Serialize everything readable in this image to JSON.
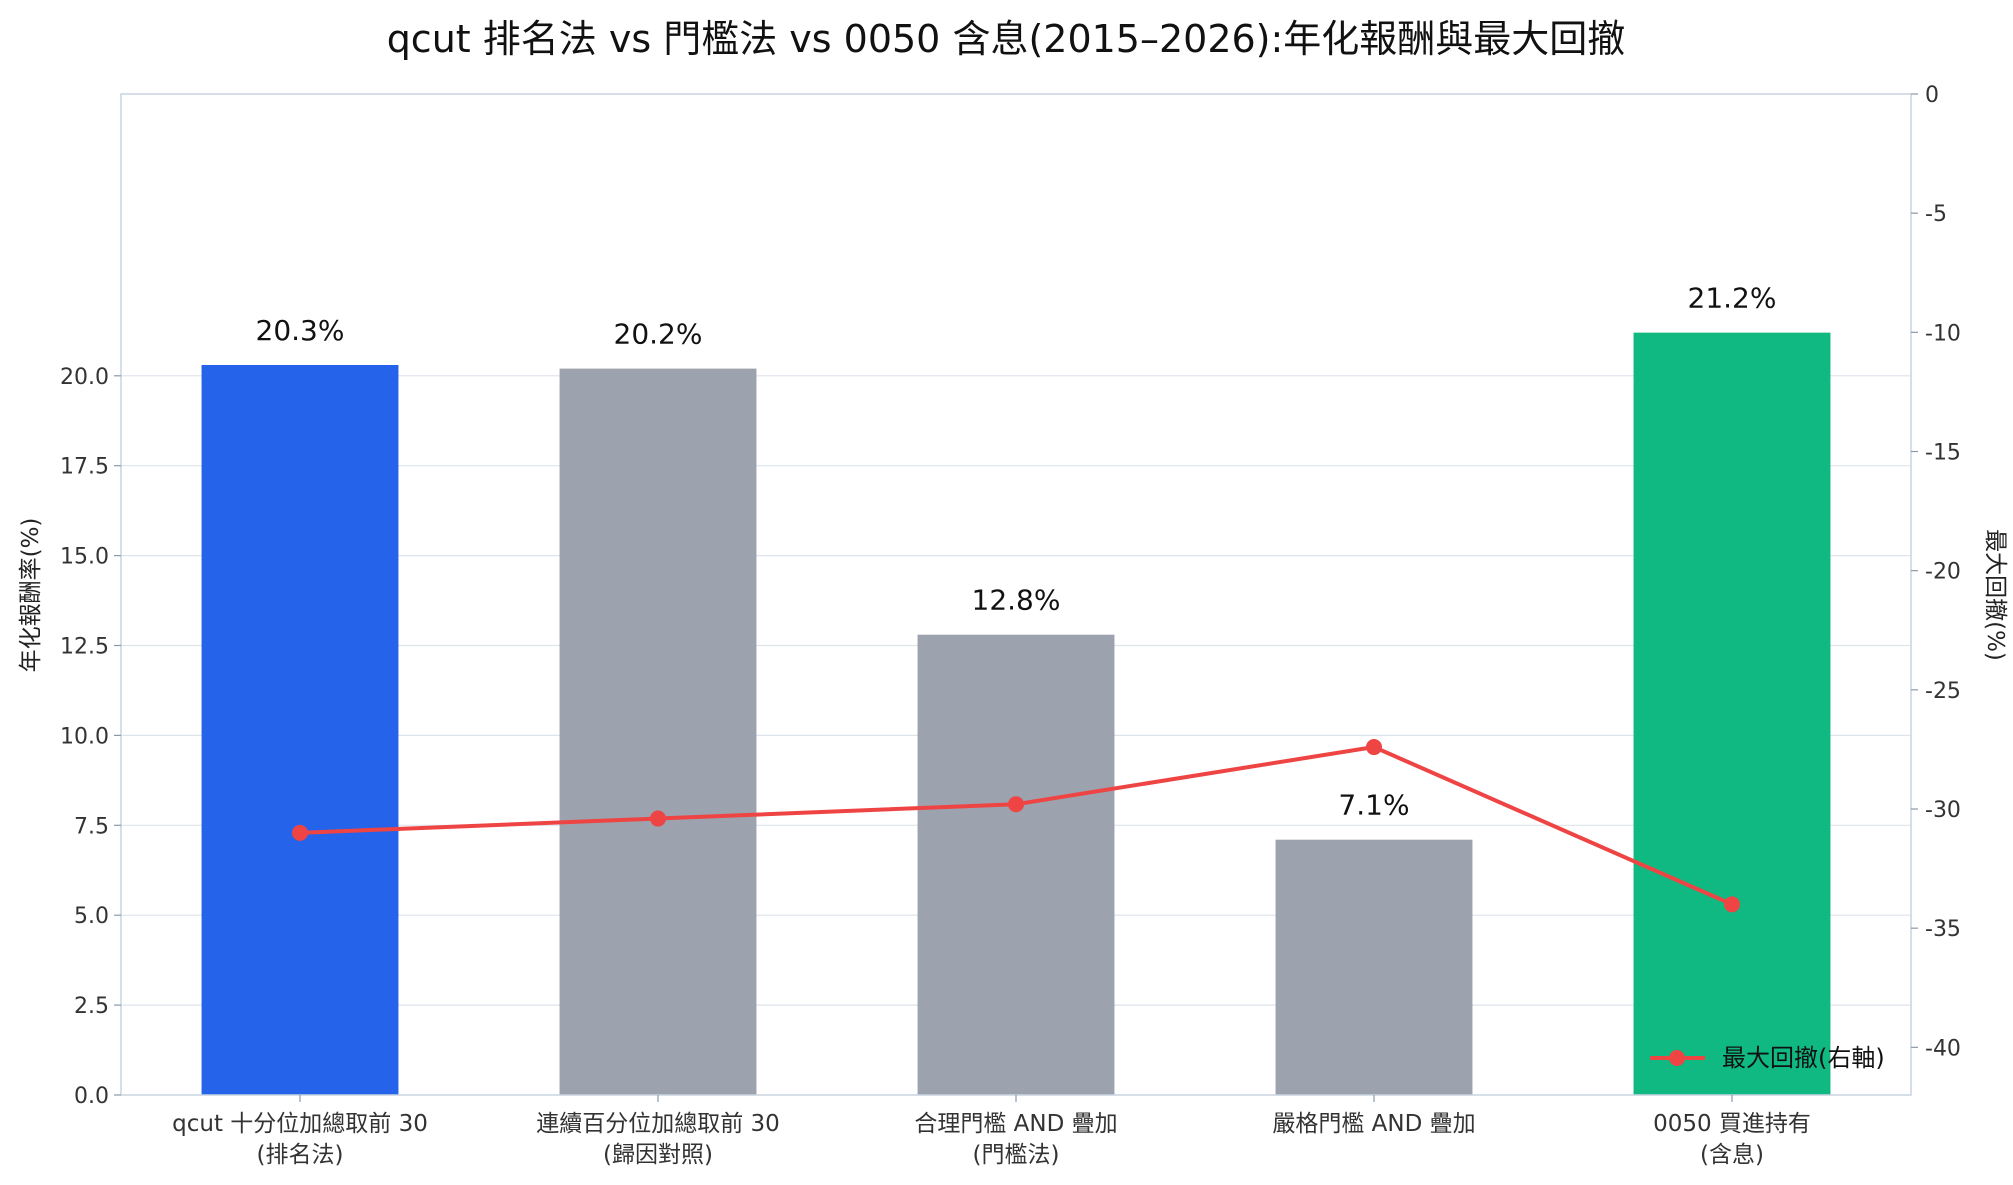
{
  "chart_data": {
    "type": "bar",
    "title": "qcut 排名法 vs 門檻法 vs 0050 含息(2015–2026):年化報酬與最大回撤",
    "categories": [
      [
        "qcut 十分位加總取前 30",
        "(排名法)"
      ],
      [
        "連續百分位加總取前 30",
        "(歸因對照)"
      ],
      [
        "合理門檻 AND 疊加",
        "(門檻法)"
      ],
      [
        "嚴格門檻 AND 疊加"
      ],
      [
        "0050 買進持有",
        "(含息)"
      ]
    ],
    "bar_values": [
      20.3,
      20.2,
      12.8,
      7.1,
      21.2
    ],
    "bar_value_labels": [
      "20.3%",
      "20.2%",
      "12.8%",
      "7.1%",
      "21.2%"
    ],
    "bar_colors": [
      "#2563eb",
      "#9ca3af",
      "#9ca3af",
      "#9ca3af",
      "#10b981"
    ],
    "line_series": {
      "name": "最大回撤(右軸)",
      "values": [
        -31.0,
        -30.4,
        -29.8,
        -27.4,
        -34.0
      ],
      "color": "#ef4444"
    },
    "ylabel_left": "年化報酬率(%)",
    "ylabel_right": "最大回撤(%)",
    "ylim_left": [
      0,
      22.2
    ],
    "ylim_right": [
      -42,
      0
    ],
    "yticks_left": [
      "0.0",
      "2.5",
      "5.0",
      "7.5",
      "10.0",
      "12.5",
      "15.0",
      "17.5",
      "20.0"
    ],
    "yticks_right": [
      "0",
      "-5",
      "-10",
      "-15",
      "-20",
      "-25",
      "-30",
      "-35",
      "-40"
    ],
    "grid": true,
    "legend_position": "bottom-right"
  }
}
